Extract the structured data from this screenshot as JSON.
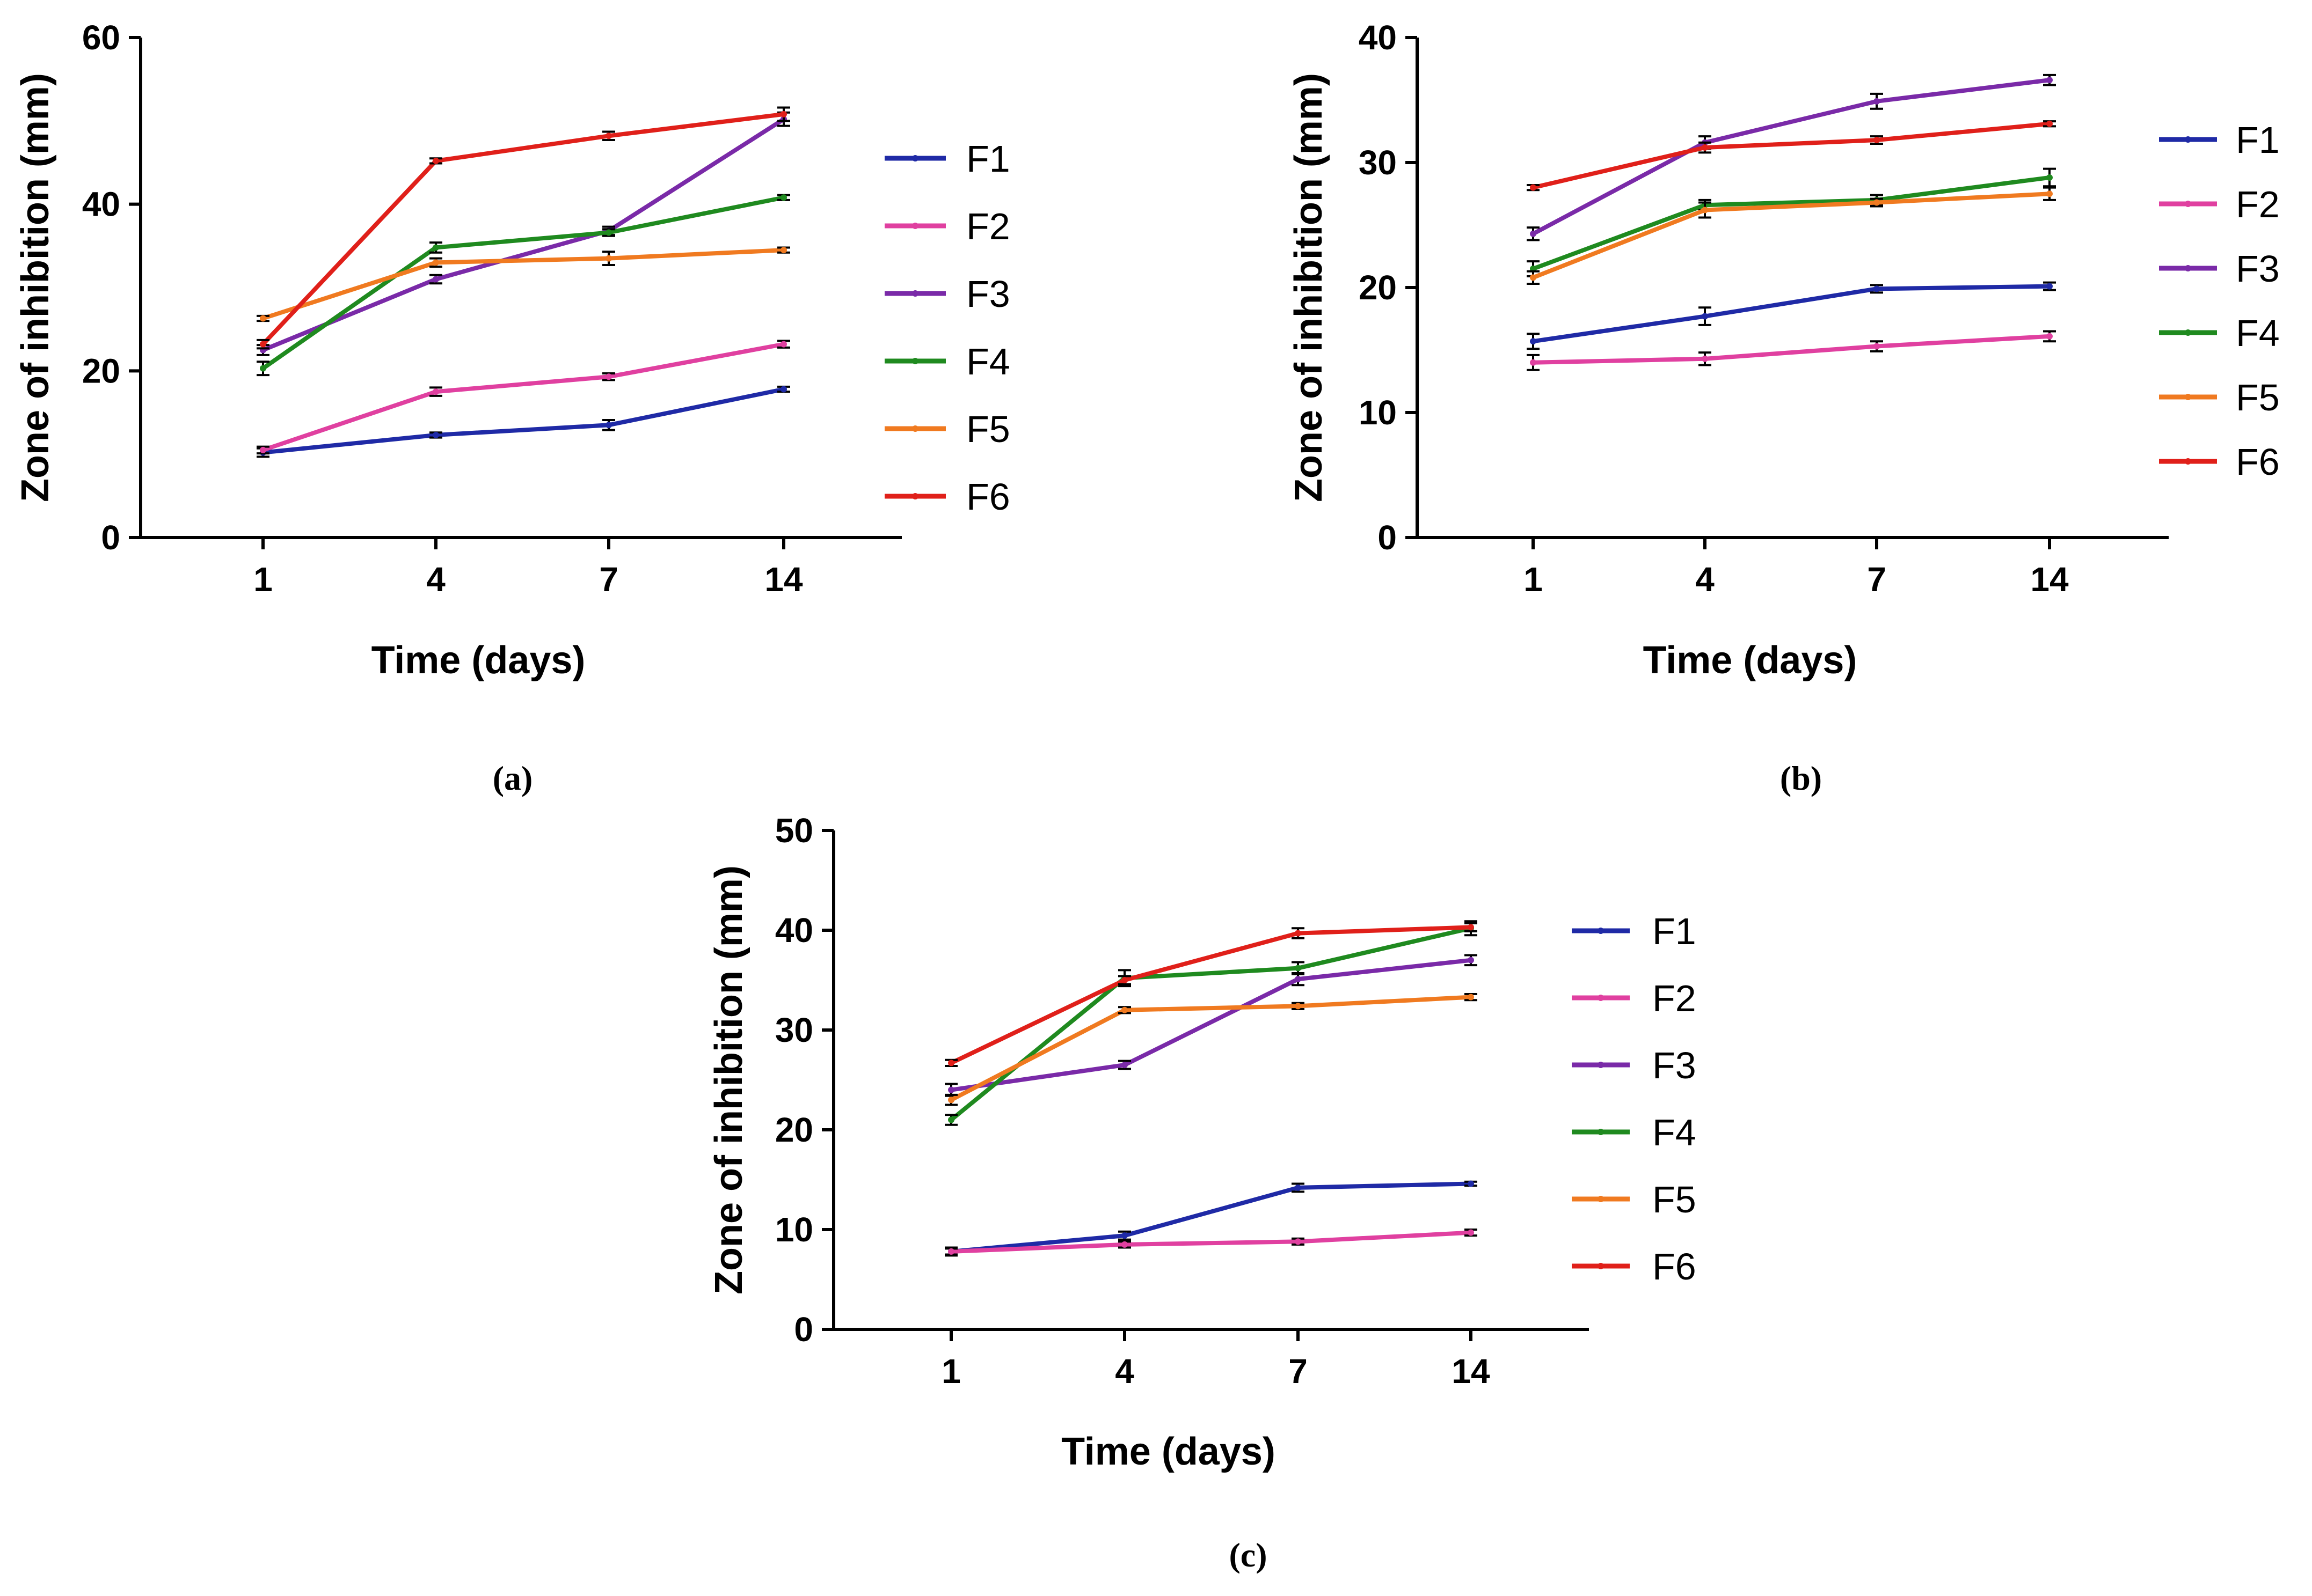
{
  "chart_data": [
    {
      "type": "line",
      "caption": "(a)",
      "xlabel": "Time (days)",
      "ylabel": "Zone of inhibition (mm)",
      "categories": [
        "1",
        "4",
        "7",
        "14"
      ],
      "ylim": [
        0,
        60
      ],
      "yticks": [
        "0",
        "20",
        "40",
        "60"
      ],
      "legend_position": "right",
      "series": [
        {
          "name": "F1",
          "color": "#1f2aa6",
          "values": [
            10.2,
            12.3,
            13.5,
            17.8
          ],
          "errors": [
            0.5,
            0.3,
            0.6,
            0.3
          ]
        },
        {
          "name": "F2",
          "color": "#e040a0",
          "values": [
            10.5,
            17.5,
            19.3,
            23.2
          ],
          "errors": [
            0.4,
            0.5,
            0.4,
            0.4
          ]
        },
        {
          "name": "F3",
          "color": "#7a2aa8",
          "values": [
            22.5,
            31.0,
            36.8,
            50.2
          ],
          "errors": [
            0.6,
            0.5,
            0.5,
            0.8
          ]
        },
        {
          "name": "F4",
          "color": "#1f8a1f",
          "values": [
            20.3,
            34.8,
            36.6,
            40.8
          ],
          "errors": [
            0.8,
            0.6,
            0.4,
            0.3
          ]
        },
        {
          "name": "F5",
          "color": "#f07a20",
          "values": [
            26.3,
            33.0,
            33.5,
            34.5
          ],
          "errors": [
            0.3,
            0.5,
            0.8,
            0.3
          ]
        },
        {
          "name": "F6",
          "color": "#e0201a",
          "values": [
            23.2,
            45.2,
            48.2,
            50.8
          ],
          "errors": [
            0.5,
            0.3,
            0.5,
            0.8
          ]
        }
      ]
    },
    {
      "type": "line",
      "caption": "(b)",
      "xlabel": "Time (days)",
      "ylabel": "Zone of inhibition (mm)",
      "categories": [
        "1",
        "4",
        "7",
        "14"
      ],
      "ylim": [
        0,
        40
      ],
      "yticks": [
        "0",
        "10",
        "20",
        "30",
        "40"
      ],
      "legend_position": "right",
      "series": [
        {
          "name": "F1",
          "color": "#1f2aa6",
          "values": [
            15.7,
            17.7,
            19.9,
            20.1
          ],
          "errors": [
            0.6,
            0.7,
            0.3,
            0.3
          ]
        },
        {
          "name": "F2",
          "color": "#e040a0",
          "values": [
            14.0,
            14.3,
            15.3,
            16.1
          ],
          "errors": [
            0.6,
            0.5,
            0.4,
            0.4
          ]
        },
        {
          "name": "F3",
          "color": "#7a2aa8",
          "values": [
            24.3,
            31.6,
            34.9,
            36.6
          ],
          "errors": [
            0.5,
            0.5,
            0.6,
            0.4
          ]
        },
        {
          "name": "F4",
          "color": "#1f8a1f",
          "values": [
            21.5,
            26.6,
            27.0,
            28.8
          ],
          "errors": [
            0.6,
            0.4,
            0.4,
            0.7
          ]
        },
        {
          "name": "F5",
          "color": "#f07a20",
          "values": [
            20.8,
            26.2,
            26.8,
            27.5
          ],
          "errors": [
            0.5,
            0.6,
            0.3,
            0.5
          ]
        },
        {
          "name": "F6",
          "color": "#e0201a",
          "values": [
            28.0,
            31.2,
            31.8,
            33.1
          ],
          "errors": [
            0.2,
            0.4,
            0.3,
            0.2
          ]
        }
      ]
    },
    {
      "type": "line",
      "caption": "(c)",
      "xlabel": "Time (days)",
      "ylabel": "Zone of inhibition (mm)",
      "categories": [
        "1",
        "4",
        "7",
        "14"
      ],
      "ylim": [
        0,
        50
      ],
      "yticks": [
        "0",
        "10",
        "20",
        "30",
        "40",
        "50"
      ],
      "legend_position": "right",
      "series": [
        {
          "name": "F1",
          "color": "#1f2aa6",
          "values": [
            7.8,
            9.4,
            14.2,
            14.6
          ],
          "errors": [
            0.4,
            0.4,
            0.4,
            0.2
          ]
        },
        {
          "name": "F2",
          "color": "#e040a0",
          "values": [
            7.8,
            8.5,
            8.8,
            9.7
          ],
          "errors": [
            0.3,
            0.3,
            0.3,
            0.3
          ]
        },
        {
          "name": "F3",
          "color": "#7a2aa8",
          "values": [
            24.0,
            26.5,
            35.1,
            37.0
          ],
          "errors": [
            0.6,
            0.4,
            0.6,
            0.5
          ]
        },
        {
          "name": "F4",
          "color": "#1f8a1f",
          "values": [
            21.0,
            35.2,
            36.2,
            40.2
          ],
          "errors": [
            0.5,
            0.8,
            0.6,
            0.7
          ]
        },
        {
          "name": "F5",
          "color": "#f07a20",
          "values": [
            23.0,
            32.0,
            32.4,
            33.3
          ],
          "errors": [
            0.5,
            0.3,
            0.3,
            0.3
          ]
        },
        {
          "name": "F6",
          "color": "#e0201a",
          "values": [
            26.7,
            35.0,
            39.7,
            40.3
          ],
          "errors": [
            0.3,
            0.4,
            0.5,
            0.4
          ]
        }
      ]
    }
  ]
}
